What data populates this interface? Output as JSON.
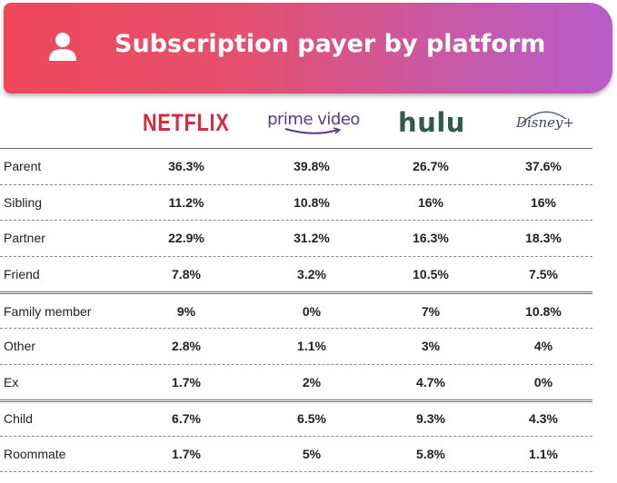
{
  "header": {
    "title": "Subscription payer by platform",
    "icon": "user-icon",
    "gradient_start": "#f0485b",
    "gradient_end": "#b85cc8"
  },
  "platforms": [
    {
      "name": "NETFLIX",
      "color": "#d8293f"
    },
    {
      "name": "prime video",
      "color": "#5a3b86"
    },
    {
      "name": "hulu",
      "color": "#2f5a4c"
    },
    {
      "name": "Disney+",
      "color": "#3a4a66"
    }
  ],
  "chart_data": {
    "type": "table",
    "title": "Subscription payer by platform",
    "columns": [
      "NETFLIX",
      "prime video",
      "hulu",
      "Disney+"
    ],
    "rows": [
      {
        "label": "Parent",
        "values": [
          "36.3%",
          "39.8%",
          "26.7%",
          "37.6%"
        ]
      },
      {
        "label": "Sibling",
        "values": [
          "11.2%",
          "10.8%",
          "16%",
          "16%"
        ]
      },
      {
        "label": "Partner",
        "values": [
          "22.9%",
          "31.2%",
          "16.3%",
          "18.3%"
        ]
      },
      {
        "label": "Friend",
        "values": [
          "7.8%",
          "3.2%",
          "10.5%",
          "7.5%"
        ]
      },
      {
        "label": "Family member",
        "values": [
          "9%",
          "0%",
          "7%",
          "10.8%"
        ]
      },
      {
        "label": "Other",
        "values": [
          "2.8%",
          "1.1%",
          "3%",
          "4%"
        ]
      },
      {
        "label": "Ex",
        "values": [
          "1.7%",
          "2%",
          "4.7%",
          "0%"
        ]
      },
      {
        "label": "Child",
        "values": [
          "6.7%",
          "6.5%",
          "9.3%",
          "4.3%"
        ]
      },
      {
        "label": "Roommate",
        "values": [
          "1.7%",
          "5%",
          "5.8%",
          "1.1%"
        ]
      }
    ]
  }
}
